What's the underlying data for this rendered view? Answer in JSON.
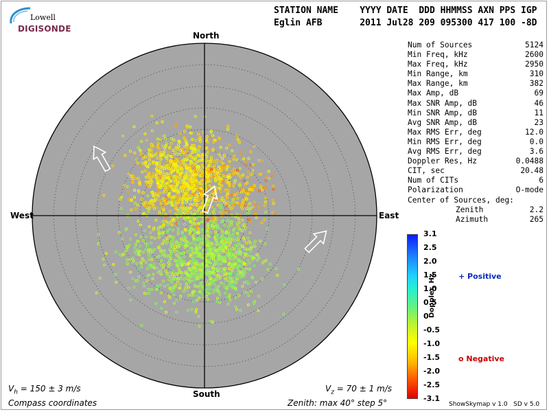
{
  "logo": {
    "line1": "Lowell",
    "line2": "DIGISONDE"
  },
  "header": {
    "labels": "STATION NAME    YYYY DATE  DDD HHMMSS AXN PPS IGP",
    "values": "Eglin AFB       2011 Jul28 209 095300 417 100 -8D"
  },
  "compass": {
    "north": "North",
    "south": "South",
    "east": "East",
    "west": "West"
  },
  "stats": [
    {
      "label": "Num of Sources",
      "value": "5124"
    },
    {
      "label": "Min Freq, kHz",
      "value": "2600"
    },
    {
      "label": "Max Freq, kHz",
      "value": "2950"
    },
    {
      "label": "Min Range, km",
      "value": "310"
    },
    {
      "label": "Max Range, km",
      "value": "382"
    },
    {
      "label": "Max Amp, dB",
      "value": "69"
    },
    {
      "label": "Max SNR Amp, dB",
      "value": "46"
    },
    {
      "label": "Min SNR Amp, dB",
      "value": "11"
    },
    {
      "label": "Avg SNR Amp, dB",
      "value": "23"
    },
    {
      "label": "Max RMS Err, deg",
      "value": "12.0"
    },
    {
      "label": "Min RMS Err, deg",
      "value": "0.0"
    },
    {
      "label": "Avg RMS Err, deg",
      "value": "3.6"
    },
    {
      "label": "Doppler Res, Hz",
      "value": "0.0488"
    },
    {
      "label": "CIT, sec",
      "value": "20.48"
    },
    {
      "label": "Num of CITs",
      "value": "6"
    },
    {
      "label": "Polarization",
      "value": "O-mode"
    },
    {
      "label": "Center of Sources, deg:",
      "value": ""
    },
    {
      "label": "Zenith",
      "value": "2.2"
    },
    {
      "label": "Azimuth",
      "value": "265"
    }
  ],
  "colorbar": {
    "title": "Doppler, Hz",
    "ticks": [
      "3.1",
      "2.5",
      "2.0",
      "1.5",
      "1.0",
      "0.5",
      "0",
      "-0.5",
      "-1.0",
      "-1.5",
      "-2.0",
      "-2.5",
      "-3.1"
    ],
    "positive": "+ Positive",
    "negative": "o Negative",
    "positive_color": "#0a2bbf",
    "negative_color": "#c80000"
  },
  "velocity": {
    "vh_sym": "V",
    "vh_sub": "h",
    "vh_text": " = 150 ± 3 m/s",
    "vz_sym": "V",
    "vz_sub": "z",
    "vz_text": " = 70 ± 1 m/s"
  },
  "footer": {
    "coords": "Compass coordinates",
    "zenith": "Zenith: max 40°  step 5°",
    "credits": "ShowSkymap v 1.0   SD v 5.0"
  },
  "chart_data": {
    "type": "scatter",
    "projection": "polar skymap",
    "zenith_max_deg": 40,
    "zenith_step_deg": 5,
    "num_sources": 5124,
    "source_clusters": [
      {
        "zenith_deg": 10,
        "azimuth_deg": 330,
        "doppler_hz": -1.2,
        "count": 2200
      },
      {
        "zenith_deg": 8,
        "azimuth_deg": 45,
        "doppler_hz": -1.6,
        "count": 500
      },
      {
        "zenith_deg": 10,
        "azimuth_deg": 170,
        "doppler_hz": -0.3,
        "count": 1900
      },
      {
        "zenith_deg": 14,
        "azimuth_deg": 230,
        "doppler_hz": -0.4,
        "count": 524
      }
    ],
    "velocity_arrows_azimuth_deg": [
      330,
      20,
      45
    ],
    "colors": {
      "disk": "#a6a6a6",
      "grid": "#555555"
    }
  }
}
